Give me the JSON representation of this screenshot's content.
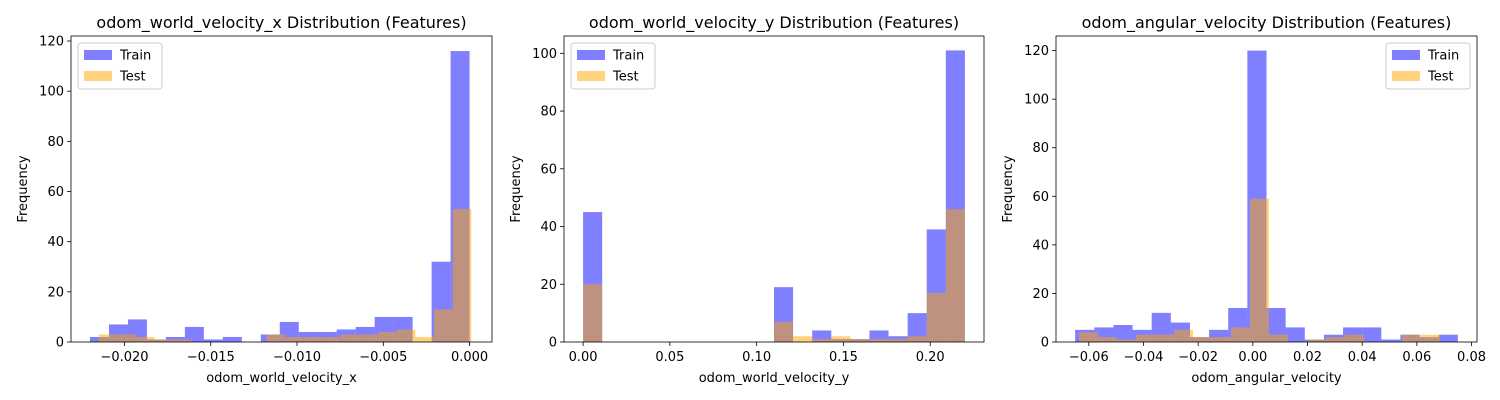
{
  "chart_data": [
    {
      "type": "histogram",
      "title": "odom_world_velocity_x Distribution (Features)",
      "xlabel": "odom_world_velocity_x",
      "ylabel": "Frequency",
      "xlim": [
        -0.0231,
        0.0013
      ],
      "ylim": [
        0,
        122
      ],
      "xticks": [
        -0.02,
        -0.015,
        -0.01,
        -0.005,
        0.0
      ],
      "xtick_labels": [
        "−0.020",
        "−0.015",
        "−0.010",
        "−0.005",
        "0.000"
      ],
      "yticks": [
        0,
        20,
        40,
        60,
        80,
        100,
        120
      ],
      "legend": "upper left",
      "series": [
        {
          "name": "Train",
          "color": "#0000ff",
          "alpha": 0.5,
          "bin_start": -0.022,
          "bin_width": 0.0011,
          "counts": [
            2,
            7,
            9,
            1,
            2,
            6,
            1,
            2,
            0,
            3,
            8,
            4,
            4,
            5,
            6,
            10,
            10,
            0,
            32,
            116
          ]
        },
        {
          "name": "Test",
          "color": "#ffa500",
          "alpha": 0.5,
          "bin_start": -0.0215,
          "bin_width": 0.00108,
          "counts": [
            3,
            3,
            2,
            1,
            1,
            0,
            0,
            0,
            0,
            3,
            2,
            2,
            2,
            3,
            3,
            4,
            5,
            2,
            13,
            53
          ]
        }
      ]
    },
    {
      "type": "histogram",
      "title": "odom_world_velocity_y Distribution (Features)",
      "xlabel": "odom_world_velocity_y",
      "ylabel": "Frequency",
      "xlim": [
        -0.011,
        0.231
      ],
      "ylim": [
        0,
        106
      ],
      "xticks": [
        0.0,
        0.05,
        0.1,
        0.15,
        0.2
      ],
      "xtick_labels": [
        "0.00",
        "0.05",
        "0.10",
        "0.15",
        "0.20"
      ],
      "yticks": [
        0,
        20,
        40,
        60,
        80,
        100
      ],
      "legend": "upper left",
      "series": [
        {
          "name": "Train",
          "color": "#0000ff",
          "alpha": 0.5,
          "bin_start": 0.0,
          "bin_width": 0.011,
          "counts": [
            45,
            0,
            0,
            0,
            0,
            0,
            0,
            0,
            0,
            0,
            19,
            0,
            4,
            1,
            1,
            4,
            2,
            10,
            39,
            101
          ]
        },
        {
          "name": "Test",
          "color": "#ffa500",
          "alpha": 0.5,
          "bin_start": 0.0,
          "bin_width": 0.011,
          "counts": [
            20,
            0,
            0,
            0,
            0,
            0,
            0,
            0,
            0,
            0,
            7,
            2,
            1,
            2,
            1,
            1,
            1,
            2,
            17,
            46
          ]
        }
      ]
    },
    {
      "type": "histogram",
      "title": "odom_angular_velocity Distribution (Features)",
      "xlabel": "odom_angular_velocity",
      "ylabel": "Frequency",
      "xlim": [
        -0.072,
        0.082
      ],
      "ylim": [
        0,
        126
      ],
      "xticks": [
        -0.06,
        -0.04,
        -0.02,
        0.0,
        0.02,
        0.04,
        0.06,
        0.08
      ],
      "xtick_labels": [
        "−0.06",
        "−0.04",
        "−0.02",
        "0.00",
        "0.02",
        "0.04",
        "0.06",
        "0.08"
      ],
      "yticks": [
        0,
        20,
        40,
        60,
        80,
        100,
        120
      ],
      "legend": "upper right",
      "series": [
        {
          "name": "Train",
          "color": "#0000ff",
          "alpha": 0.5,
          "bin_start": -0.065,
          "bin_width": 0.007,
          "counts": [
            5,
            6,
            7,
            5,
            12,
            8,
            2,
            5,
            14,
            120,
            14,
            6,
            1,
            3,
            6,
            6,
            1,
            3,
            2,
            3
          ]
        },
        {
          "name": "Test",
          "color": "#ffa500",
          "alpha": 0.5,
          "bin_start": -0.0636,
          "bin_width": 0.00695,
          "counts": [
            4,
            2,
            1,
            3,
            3,
            5,
            2,
            2,
            6,
            59,
            3,
            0,
            1,
            2,
            3,
            0,
            0,
            3,
            3,
            0
          ]
        }
      ]
    }
  ]
}
